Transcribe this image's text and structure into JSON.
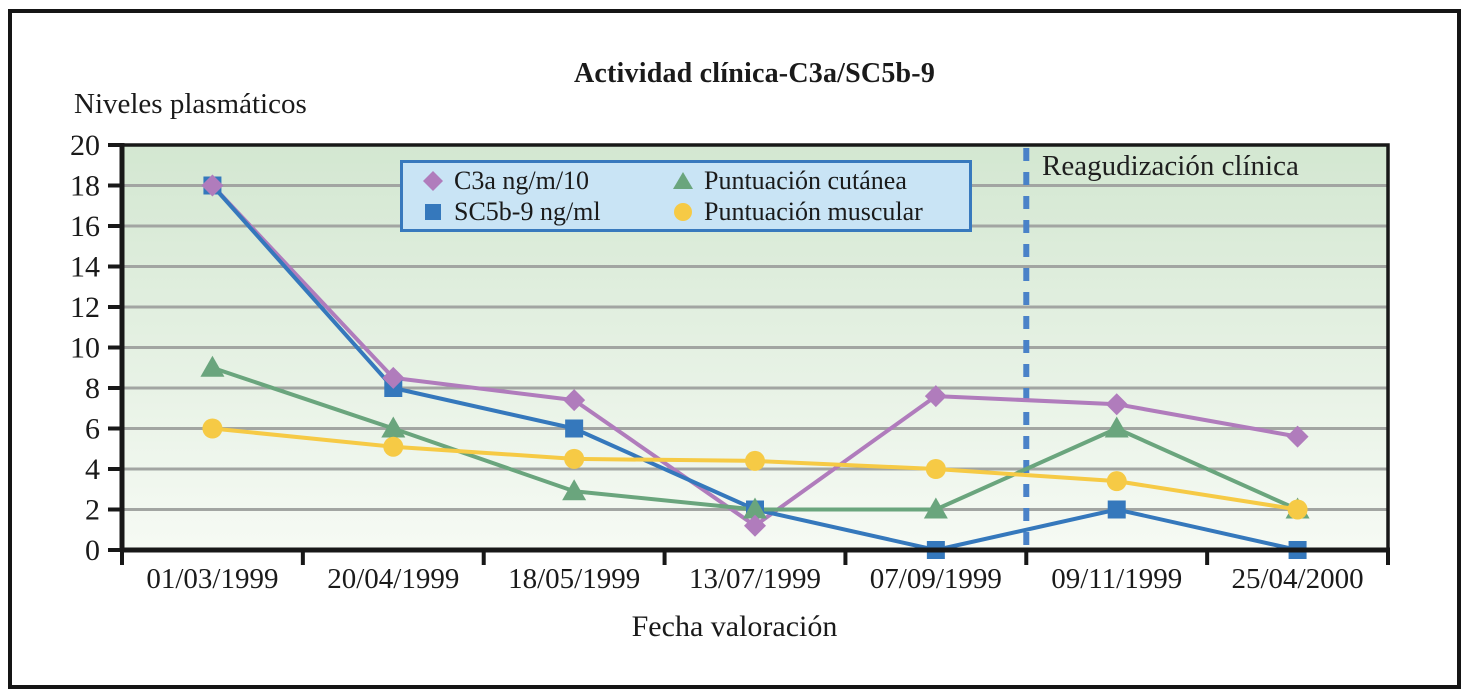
{
  "figure": {
    "title": "Actividad clínica-C3a/SC5b-9",
    "y_axis_title": "Niveles plasmáticos",
    "x_axis_title": "Fecha valoración",
    "annotation": "Reagudización clínica"
  },
  "legend": {
    "items": [
      {
        "label": "C3a ng/m/10",
        "marker": "diamond",
        "color": "#b07cbc"
      },
      {
        "label": "SC5b-9 ng/ml",
        "marker": "square",
        "color": "#3578bc"
      },
      {
        "label": "Puntuación cutánea",
        "marker": "triangle",
        "color": "#6aa57d"
      },
      {
        "label": "Puntuación muscular",
        "marker": "circle",
        "color": "#f6ca45"
      }
    ]
  },
  "chart_data": {
    "type": "line",
    "title": "Actividad clínica-C3a/SC5b-9",
    "xlabel": "Fecha valoración",
    "ylabel": "Niveles plasmáticos",
    "categories": [
      "01/03/1999",
      "20/04/1999",
      "18/05/1999",
      "13/07/1999",
      "07/09/1999",
      "09/11/1999",
      "25/04/2000"
    ],
    "series": [
      {
        "name": "C3a ng/m/10",
        "marker": "diamond",
        "color": "#b07cbc",
        "values": [
          18,
          8.5,
          7.4,
          1.2,
          7.6,
          7.2,
          5.6
        ]
      },
      {
        "name": "SC5b-9 ng/ml",
        "marker": "square",
        "color": "#3578bc",
        "values": [
          18,
          8,
          6,
          2,
          0,
          2,
          0
        ]
      },
      {
        "name": "Puntuación cutánea",
        "marker": "triangle",
        "color": "#6aa57d",
        "values": [
          9,
          6,
          2.9,
          2,
          2,
          6,
          2
        ]
      },
      {
        "name": "Puntuación muscular",
        "marker": "circle",
        "color": "#f6ca45",
        "values": [
          6,
          5.1,
          4.5,
          4.4,
          4,
          3.4,
          2
        ]
      }
    ],
    "ylim": [
      0,
      20
    ],
    "yticks": [
      0,
      2,
      4,
      6,
      8,
      10,
      12,
      14,
      16,
      18,
      20
    ],
    "grid": true,
    "legend_position": "top-center",
    "plot_bg_gradient": [
      "#d3e7d1",
      "#f6faf4"
    ],
    "gridline_color": "#a2a5a2",
    "vline": {
      "boundary_index": 5,
      "style": "dashed",
      "color": "#4a82c8",
      "label": "Reagudización clínica"
    }
  },
  "colors": {
    "frame": "#151515",
    "axis": "#181818",
    "text": "#1a1a1a",
    "legend_bg": "#c9e4f5",
    "legend_border": "#3879bd"
  }
}
